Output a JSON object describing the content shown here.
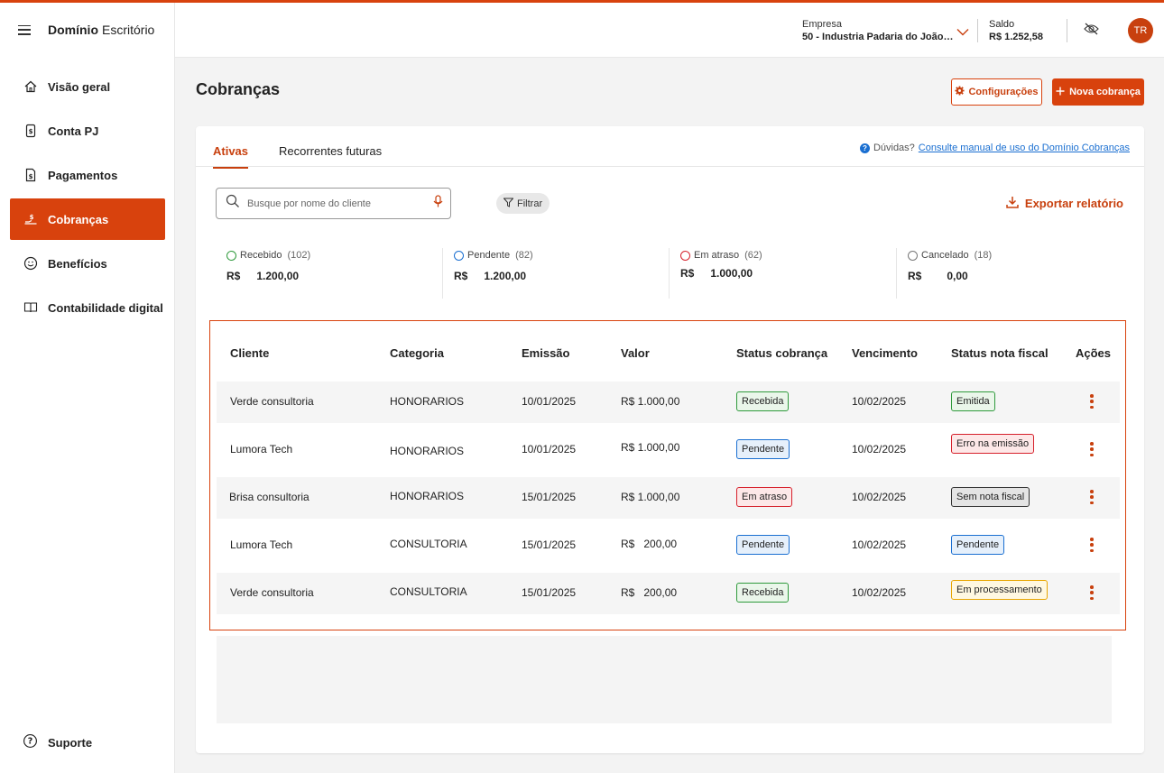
{
  "brand": {
    "bold": "Domínio",
    "regular": "Escritório"
  },
  "sidebar": {
    "items": [
      {
        "label": "Visão geral",
        "icon": "home-icon"
      },
      {
        "label": "Conta PJ",
        "icon": "bill-icon"
      },
      {
        "label": "Pagamentos",
        "icon": "payment-icon"
      },
      {
        "label": "Cobranças",
        "icon": "hand-coin-icon",
        "active": true
      },
      {
        "label": "Benefícios",
        "icon": "smile-icon"
      },
      {
        "label": "Contabilidade digital",
        "icon": "book-icon"
      }
    ],
    "support": "Suporte"
  },
  "header": {
    "company_label": "Empresa",
    "company_value": "50 - Industria Padaria do João…",
    "saldo_label": "Saldo",
    "saldo_value": "R$ 1.252,58",
    "avatar": "TR"
  },
  "page": {
    "title": "Cobranças",
    "config_button": "Configurações",
    "new_button": "Nova cobrança"
  },
  "tabs": [
    "Ativas",
    "Recorrentes futuras"
  ],
  "help": {
    "prefix": "Dúvidas?",
    "link": "Consulte manual de uso do Domínio Cobranças"
  },
  "search": {
    "placeholder": "Busque por nome do cliente",
    "value": ""
  },
  "filter_label": "Filtrar",
  "export_label": "Exportar relatório",
  "stats": [
    {
      "label": "Recebido",
      "count": "(102)",
      "currency": "R$",
      "amount": "1.200,00",
      "color": "#2f9a3c"
    },
    {
      "label": "Pendente",
      "count": "(82)",
      "currency": "R$",
      "amount": "1.200,00",
      "color": "#1a6fd1"
    },
    {
      "label": "Em atraso",
      "count": "(62)",
      "currency": "R$",
      "amount": "1.000,00",
      "color": "#d6202b"
    },
    {
      "label": "Cancelado",
      "count": "(18)",
      "currency": "R$",
      "amount": "0,00",
      "color": "#777777"
    }
  ],
  "table": {
    "headers": [
      "Cliente",
      "Categoria",
      "Emissão",
      "Valor",
      "Status cobrança",
      "Vencimento",
      "Status nota fiscal",
      "Ações"
    ],
    "rows": [
      {
        "cliente": "Verde consultoria",
        "categoria": "HONORARIOS",
        "emissao": "10/01/2025",
        "valor": "R$ 1.000,00",
        "status": "Recebida",
        "vencimento": "10/02/2025",
        "nf": "Emitida"
      },
      {
        "cliente": "Lumora Tech",
        "categoria": "HONORARIOS",
        "emissao": "10/01/2025",
        "valor": "R$ 1.000,00",
        "status": "Pendente",
        "vencimento": "10/02/2025",
        "nf": "Erro na emissão"
      },
      {
        "cliente": "Brisa consultoria",
        "categoria": "HONORARIOS",
        "emissao": "15/01/2025",
        "valor": "R$ 1.000,00",
        "status": "Em atraso",
        "vencimento": "10/02/2025",
        "nf": "Sem nota fiscal"
      },
      {
        "cliente": "Lumora Tech",
        "categoria": "CONSULTORIA",
        "emissao": "15/01/2025",
        "valor": "R$   200,00",
        "status": "Pendente",
        "vencimento": "10/02/2025",
        "nf": "Pendente"
      },
      {
        "cliente": "Verde consultoria",
        "categoria": "CONSULTORIA",
        "emissao": "15/01/2025",
        "valor": "R$   200,00",
        "status": "Recebida",
        "vencimento": "10/02/2025",
        "nf": "Em processamento"
      }
    ]
  },
  "colors": {
    "accent": "#d8420d",
    "link": "#1a6fd1"
  }
}
